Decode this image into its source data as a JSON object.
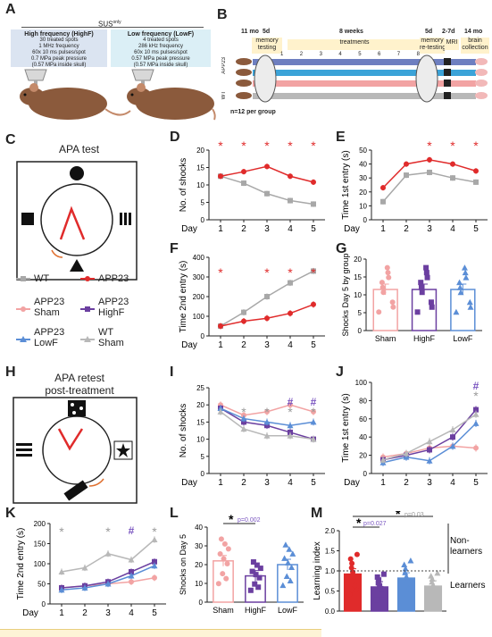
{
  "panel_letters": {
    "A": "A",
    "B": "B",
    "C": "C",
    "D": "D",
    "E": "E",
    "F": "F",
    "G": "G",
    "H": "H",
    "I": "I",
    "J": "J",
    "K": "K",
    "L": "L",
    "M": "M"
  },
  "colors": {
    "wt": "#a8a8a8",
    "app23": "#e02b2b",
    "sham": "#f2a3a3",
    "highf": "#6b3fa0",
    "lowf": "#5b8ed6",
    "wtsham": "#b8b8b8",
    "star_red": "#e02b2b",
    "star_gray": "#9a9a9a",
    "hash_purple": "#7a55c0",
    "tan": "#fff2cc"
  },
  "panelA": {
    "sus_prefix": "SUS",
    "sus_sup": "only",
    "highf": {
      "title": "High frequency (HighF)",
      "lines": [
        "30 treated spots",
        "1 MHz frequency",
        "60x 10 ms pulses/spot",
        "0.7 MPa peak pressure",
        "(0.57 MPa inside skull)"
      ]
    },
    "lowf": {
      "title": "Low frequency (LowF)",
      "lines": [
        "4 treated spots",
        "286 kHz frequency",
        "60x 10 ms pulses/spot",
        "0.57 MPa peak pressure",
        "(0.57 MPa inside skull)"
      ]
    }
  },
  "panelB": {
    "age_start": "11 mo",
    "first": "5d",
    "memory_testing": "memory\ntesting",
    "weeks": "8 weeks",
    "treatments": "treatments",
    "week_numbers": [
      "1",
      "2",
      "3",
      "4",
      "5",
      "6",
      "7",
      "8"
    ],
    "re_days": "5d",
    "memory_retesting": "memory\nre-testing",
    "mri_days": "2-7d",
    "mri": "MRI",
    "end_age": "14 mo",
    "brain_collection": "brain\ncollection",
    "app23": "APP23",
    "wt": "WT",
    "n_label": "n=12 per group"
  },
  "panelC": {
    "title": "APA test"
  },
  "panelH": {
    "title1": "APA retest",
    "title2": "post-treatment"
  },
  "legend": {
    "wt": "WT",
    "app23": "APP23",
    "app23sham": "APP23\nSham",
    "app23highf": "APP23\nHighF",
    "app23lowf": "APP23\nLowF",
    "wtsham": "WT\nSham"
  },
  "panelD": {
    "ylabel": "No. of shocks",
    "xlabel": "Day",
    "yticks": [
      "0",
      "5",
      "10",
      "15",
      "20"
    ],
    "xticks": [
      "1",
      "2",
      "3",
      "4",
      "5"
    ],
    "series": [
      {
        "name": "WT",
        "values": [
          12.5,
          10.5,
          7.5,
          5.5,
          4.5
        ]
      },
      {
        "name": "APP23",
        "values": [
          12.5,
          13.8,
          15.3,
          12.5,
          10.8
        ]
      }
    ],
    "sig": [
      "*",
      "*",
      "*",
      "*",
      "*"
    ]
  },
  "panelE": {
    "ylabel": "Time 1st entry (s)",
    "xlabel": "Day",
    "yticks": [
      "0",
      "10",
      "20",
      "30",
      "40",
      "50"
    ],
    "xticks": [
      "1",
      "2",
      "3",
      "4",
      "5"
    ],
    "series": [
      {
        "name": "WT",
        "values": [
          13,
          32,
          34,
          30,
          27
        ]
      },
      {
        "name": "APP23",
        "values": [
          23,
          40,
          43,
          40,
          35
        ]
      }
    ],
    "sig": [
      "*",
      "*",
      "*"
    ]
  },
  "panelF": {
    "ylabel": "Time 2nd entry (s)",
    "xlabel": "Day",
    "yticks": [
      "0",
      "100",
      "200",
      "300",
      "400"
    ],
    "xticks": [
      "1",
      "2",
      "3",
      "4",
      "5"
    ],
    "series": [
      {
        "name": "WT",
        "values": [
          50,
          120,
          200,
          270,
          330
        ]
      },
      {
        "name": "APP23",
        "values": [
          50,
          75,
          90,
          115,
          160
        ]
      }
    ],
    "sig": [
      "*",
      "*",
      "*",
      "*"
    ]
  },
  "panelG": {
    "ylabel": "Shocks Day 5 by group",
    "yticks": [
      "0",
      "5",
      "10",
      "15",
      "20"
    ],
    "categories": [
      "Sham",
      "HighF",
      "LowF"
    ],
    "values": [
      11.5,
      11.5,
      11.5
    ]
  },
  "panelI": {
    "ylabel": "No. of shocks",
    "xlabel": "Day",
    "yticks": [
      "0",
      "5",
      "10",
      "15",
      "20",
      "25"
    ],
    "xticks": [
      "1",
      "2",
      "3",
      "4",
      "5"
    ],
    "series": [
      {
        "name": "APP23 Sham",
        "values": [
          20,
          17,
          18,
          20,
          18
        ]
      },
      {
        "name": "APP23 HighF",
        "values": [
          19,
          15,
          14,
          12,
          10
        ]
      },
      {
        "name": "APP23 LowF",
        "values": [
          19,
          16,
          15,
          14,
          15
        ]
      },
      {
        "name": "WT Sham",
        "values": [
          18,
          13,
          11,
          11,
          10
        ]
      }
    ],
    "sig_gray": [
      "*",
      "*",
      "*",
      "*"
    ],
    "sig_hash": [
      "#",
      "#"
    ]
  },
  "panelJ": {
    "ylabel": "Time 1st entry (s)",
    "xlabel": "Day",
    "yticks": [
      "0",
      "20",
      "40",
      "60",
      "80",
      "100"
    ],
    "xticks": [
      "1",
      "2",
      "3",
      "4",
      "5"
    ],
    "series": [
      {
        "name": "APP23 Sham",
        "values": [
          18,
          22,
          28,
          30,
          28
        ]
      },
      {
        "name": "APP23 HighF",
        "values": [
          15,
          20,
          26,
          40,
          70
        ]
      },
      {
        "name": "APP23 LowF",
        "values": [
          12,
          18,
          14,
          30,
          55
        ]
      },
      {
        "name": "WT Sham",
        "values": [
          15,
          22,
          35,
          48,
          65
        ]
      }
    ],
    "sig_gray": [
      "*"
    ],
    "sig_hash": [
      "#"
    ]
  },
  "panelK": {
    "ylabel": "Time 2nd entry (s)",
    "xlabel": "Day",
    "yticks": [
      "0",
      "50",
      "100",
      "150",
      "200"
    ],
    "xticks": [
      "1",
      "2",
      "3",
      "4",
      "5"
    ],
    "series": [
      {
        "name": "APP23 Sham",
        "values": [
          40,
          45,
          50,
          55,
          65
        ]
      },
      {
        "name": "APP23 HighF",
        "values": [
          40,
          45,
          55,
          80,
          105
        ]
      },
      {
        "name": "APP23 LowF",
        "values": [
          35,
          40,
          50,
          70,
          95
        ]
      },
      {
        "name": "WT Sham",
        "values": [
          80,
          90,
          125,
          110,
          160
        ]
      }
    ],
    "sig_gray": [
      "*",
      "*",
      "*"
    ],
    "sig_hash": [
      "#"
    ]
  },
  "panelL": {
    "ylabel": "Shocks on Day 5",
    "categories": [
      "Sham",
      "HighF",
      "LowF"
    ],
    "values": [
      22,
      14,
      20
    ],
    "yticks": [
      "0",
      "10",
      "20",
      "30",
      "40"
    ],
    "pval": "p=0.002"
  },
  "panelM": {
    "ylabel": "Learning index",
    "categories": [
      "APP23 Sham",
      "APP23 HighF",
      "APP23 LowF",
      "WT Sham"
    ],
    "values": [
      0.92,
      0.6,
      0.82,
      0.62
    ],
    "yticks": [
      "0.0",
      "0.5",
      "1.0",
      "1.5",
      "2.0"
    ],
    "p1": "p=0.027",
    "p2": "p=0.03",
    "nonlearners": "Non-\nlearners",
    "learners": "Learners"
  }
}
